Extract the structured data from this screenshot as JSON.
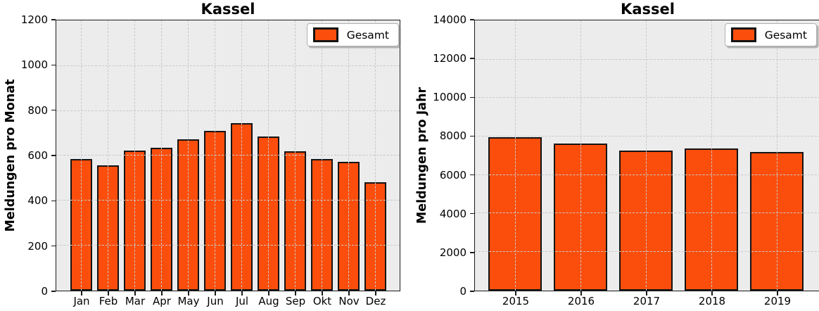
{
  "figure": {
    "background": "#ffffff",
    "axes_background": "#ececec",
    "grid_color": "#c9c9c9",
    "bar_color": "#fb4e0c",
    "bar_edge_color": "#141414"
  },
  "chart_data": [
    {
      "type": "bar",
      "title": "Kassel",
      "ylabel": "Meldungen pro Monat",
      "xlabel": "",
      "categories": [
        "Jan",
        "Feb",
        "Mar",
        "Apr",
        "May",
        "Jun",
        "Jul",
        "Aug",
        "Sep",
        "Okt",
        "Nov",
        "Dez"
      ],
      "values": [
        583,
        556,
        622,
        634,
        670,
        709,
        742,
        684,
        619,
        583,
        570,
        479
      ],
      "ylim": [
        0,
        1200
      ],
      "ytick_step": 200,
      "grid": true,
      "grid_style": "dashed",
      "legend": {
        "label": "Gesamt",
        "position": "upper right"
      }
    },
    {
      "type": "bar",
      "title": "Kassel",
      "ylabel": "Meldungen pro Jahr",
      "xlabel": "",
      "categories": [
        "2015",
        "2016",
        "2017",
        "2018",
        "2019"
      ],
      "values": [
        7920,
        7620,
        7250,
        7350,
        7180
      ],
      "ylim": [
        0,
        14000
      ],
      "ytick_step": 2000,
      "grid": true,
      "grid_style": "dashed",
      "legend": {
        "label": "Gesamt",
        "position": "upper right"
      }
    }
  ]
}
